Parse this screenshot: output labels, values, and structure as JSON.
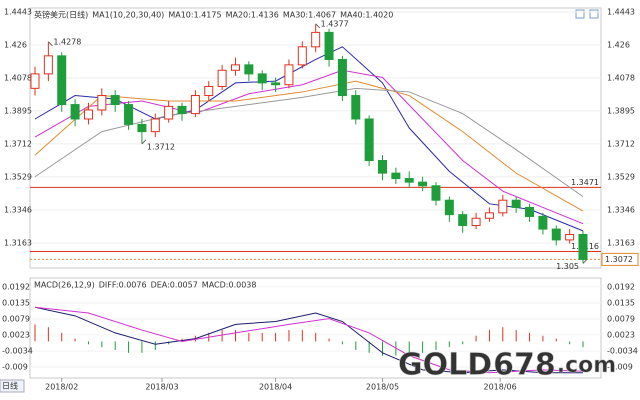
{
  "chart_data": [
    {
      "type": "candlestick",
      "title": "英镑美元(日线)",
      "indicator": "MA1(10,20,30,40)",
      "up_color": "#e0301e",
      "down_color": "#1e9e3a",
      "ylim": [
        1.3041,
        1.4454
      ],
      "yticks": [
        1.4443,
        1.426,
        1.4078,
        1.3895,
        1.3712,
        1.3529,
        1.3346,
        1.3163
      ],
      "xlim": [
        -2,
        42
      ],
      "xticks": [
        {
          "value": 2,
          "label": "2018/02"
        },
        {
          "value": 9.5,
          "label": "2018/03"
        },
        {
          "value": 18,
          "label": "2018/04"
        },
        {
          "value": 26,
          "label": "2018/05"
        },
        {
          "value": 34.8,
          "label": "2018/06"
        }
      ],
      "period_label": "日线",
      "candles": [
        {
          "o": 1.402,
          "h": 1.414,
          "l": 1.398,
          "c": 1.41
        },
        {
          "o": 1.41,
          "h": 1.4278,
          "l": 1.406,
          "c": 1.42
        },
        {
          "o": 1.42,
          "h": 1.422,
          "l": 1.389,
          "c": 1.393
        },
        {
          "o": 1.393,
          "h": 1.396,
          "l": 1.381,
          "c": 1.385
        },
        {
          "o": 1.385,
          "h": 1.394,
          "l": 1.382,
          "c": 1.39
        },
        {
          "o": 1.39,
          "h": 1.402,
          "l": 1.387,
          "c": 1.398
        },
        {
          "o": 1.398,
          "h": 1.401,
          "l": 1.389,
          "c": 1.393
        },
        {
          "o": 1.393,
          "h": 1.395,
          "l": 1.379,
          "c": 1.382
        },
        {
          "o": 1.382,
          "h": 1.385,
          "l": 1.3712,
          "c": 1.378
        },
        {
          "o": 1.378,
          "h": 1.388,
          "l": 1.375,
          "c": 1.385
        },
        {
          "o": 1.385,
          "h": 1.395,
          "l": 1.383,
          "c": 1.392
        },
        {
          "o": 1.392,
          "h": 1.394,
          "l": 1.384,
          "c": 1.388
        },
        {
          "o": 1.388,
          "h": 1.401,
          "l": 1.386,
          "c": 1.398
        },
        {
          "o": 1.398,
          "h": 1.406,
          "l": 1.395,
          "c": 1.403
        },
        {
          "o": 1.403,
          "h": 1.415,
          "l": 1.401,
          "c": 1.412
        },
        {
          "o": 1.412,
          "h": 1.419,
          "l": 1.409,
          "c": 1.415
        },
        {
          "o": 1.415,
          "h": 1.417,
          "l": 1.406,
          "c": 1.41
        },
        {
          "o": 1.41,
          "h": 1.412,
          "l": 1.401,
          "c": 1.405
        },
        {
          "o": 1.405,
          "h": 1.408,
          "l": 1.4,
          "c": 1.404
        },
        {
          "o": 1.404,
          "h": 1.418,
          "l": 1.402,
          "c": 1.415
        },
        {
          "o": 1.415,
          "h": 1.428,
          "l": 1.413,
          "c": 1.425
        },
        {
          "o": 1.425,
          "h": 1.4377,
          "l": 1.422,
          "c": 1.433
        },
        {
          "o": 1.433,
          "h": 1.435,
          "l": 1.414,
          "c": 1.418
        },
        {
          "o": 1.418,
          "h": 1.42,
          "l": 1.395,
          "c": 1.398
        },
        {
          "o": 1.398,
          "h": 1.401,
          "l": 1.382,
          "c": 1.385
        },
        {
          "o": 1.385,
          "h": 1.387,
          "l": 1.359,
          "c": 1.362
        },
        {
          "o": 1.362,
          "h": 1.365,
          "l": 1.351,
          "c": 1.355
        },
        {
          "o": 1.355,
          "h": 1.358,
          "l": 1.349,
          "c": 1.352
        },
        {
          "o": 1.352,
          "h": 1.356,
          "l": 1.347,
          "c": 1.35
        },
        {
          "o": 1.35,
          "h": 1.353,
          "l": 1.345,
          "c": 1.348
        },
        {
          "o": 1.348,
          "h": 1.35,
          "l": 1.337,
          "c": 1.34
        },
        {
          "o": 1.34,
          "h": 1.342,
          "l": 1.328,
          "c": 1.332
        },
        {
          "o": 1.332,
          "h": 1.334,
          "l": 1.322,
          "c": 1.326
        },
        {
          "o": 1.326,
          "h": 1.333,
          "l": 1.324,
          "c": 1.33
        },
        {
          "o": 1.33,
          "h": 1.336,
          "l": 1.328,
          "c": 1.333
        },
        {
          "o": 1.333,
          "h": 1.343,
          "l": 1.331,
          "c": 1.34
        },
        {
          "o": 1.34,
          "h": 1.342,
          "l": 1.333,
          "c": 1.336
        },
        {
          "o": 1.336,
          "h": 1.338,
          "l": 1.328,
          "c": 1.331
        },
        {
          "o": 1.331,
          "h": 1.333,
          "l": 1.321,
          "c": 1.324
        },
        {
          "o": 1.324,
          "h": 1.326,
          "l": 1.315,
          "c": 1.318
        },
        {
          "o": 1.318,
          "h": 1.324,
          "l": 1.316,
          "c": 1.321
        },
        {
          "o": 1.321,
          "h": 1.323,
          "l": 1.305,
          "c": 1.3072
        }
      ],
      "series": [
        {
          "name": "MA10:1.4175",
          "color": "#2a2aa8",
          "x": [
            0,
            3,
            6,
            9,
            12,
            15,
            18,
            21,
            23,
            26,
            28,
            31,
            34,
            37,
            41
          ],
          "values": [
            1.385,
            1.398,
            1.396,
            1.385,
            1.39,
            1.405,
            1.406,
            1.418,
            1.425,
            1.405,
            1.38,
            1.356,
            1.338,
            1.335,
            1.323
          ]
        },
        {
          "name": "MA20:1.4136",
          "color": "#d030d0",
          "x": [
            0,
            4,
            8,
            12,
            16,
            20,
            23,
            26,
            29,
            32,
            35,
            38,
            41
          ],
          "values": [
            1.375,
            1.392,
            1.395,
            1.388,
            1.399,
            1.404,
            1.412,
            1.408,
            1.385,
            1.362,
            1.345,
            1.336,
            1.327
          ]
        },
        {
          "name": "MA30:1.4067",
          "color": "#e08a30",
          "x": [
            0,
            5,
            10,
            15,
            20,
            24,
            28,
            32,
            36,
            41
          ],
          "values": [
            1.365,
            1.398,
            1.395,
            1.395,
            1.4,
            1.406,
            1.398,
            1.378,
            1.355,
            1.334
          ]
        },
        {
          "name": "MA40:1.4020",
          "color": "#999999",
          "x": [
            0,
            5,
            10,
            15,
            20,
            24,
            28,
            32,
            36,
            41
          ],
          "values": [
            1.353,
            1.378,
            1.387,
            1.392,
            1.397,
            1.402,
            1.4,
            1.388,
            1.368,
            1.342
          ]
        }
      ],
      "annotations": [
        {
          "value": 1.4278,
          "at": 1
        },
        {
          "value": 1.3712,
          "at": 8
        },
        {
          "value": 1.4377,
          "at": 21
        },
        {
          "value": 1.305,
          "at": 41
        }
      ],
      "hlines": [
        {
          "value": 1.3471,
          "color": "#e0301e"
        },
        {
          "value": 1.3116,
          "color": "#e0301e"
        }
      ],
      "last_price": {
        "value": 1.3072,
        "color": "#e08a30"
      }
    },
    {
      "type": "macd",
      "title": "MACD(26,12,9)",
      "xlim": [
        -2,
        42
      ],
      "ylim": [
        -0.0118,
        0.0216
      ],
      "yticks": [
        0.0192,
        0.0135,
        0.0079,
        0.0023,
        -0.0034,
        -0.009
      ],
      "up_color": "#e0301e",
      "down_color": "#1e9e3a",
      "histogram": {
        "name": "MACD:0.0038",
        "color": "#e08a30",
        "values": [
          0.006,
          0.005,
          0.003,
          0.001,
          -0.001,
          -0.002,
          -0.003,
          -0.004,
          -0.004,
          -0.003,
          -0.001,
          0.001,
          0.002,
          0.003,
          0.004,
          0.004,
          0.003,
          0.003,
          0.003,
          0.004,
          0.004,
          0.003,
          0.001,
          -0.001,
          -0.003,
          -0.004,
          -0.005,
          -0.005,
          -0.004,
          -0.004,
          -0.003,
          -0.002,
          -0.001,
          0.002,
          0.004,
          0.005,
          0.004,
          0.003,
          0.002,
          0.001,
          -0.001,
          -0.002
        ]
      },
      "series": [
        {
          "name": "DIFF:0.0076",
          "color": "#1a1a6a",
          "x": [
            0,
            3,
            6,
            9,
            12,
            15,
            18,
            21,
            23,
            26,
            29,
            32,
            35,
            38,
            41
          ],
          "values": [
            0.012,
            0.009,
            0.003,
            -0.001,
            0.001,
            0.006,
            0.007,
            0.01,
            0.007,
            -0.004,
            -0.01,
            -0.011,
            -0.01,
            -0.011,
            -0.011
          ]
        },
        {
          "name": "DEA:0.0057",
          "color": "#d030d0",
          "x": [
            0,
            4,
            8,
            11,
            15,
            19,
            22,
            25,
            28,
            31,
            34,
            38,
            41
          ],
          "values": [
            0.012,
            0.01,
            0.004,
            0.0,
            0.003,
            0.006,
            0.008,
            0.003,
            -0.005,
            -0.01,
            -0.011,
            -0.01,
            -0.0105
          ]
        }
      ]
    },
    {
      "type": "watermark",
      "parts": [
        {
          "text": "GOLD",
          "color": "#f0f0f0"
        },
        {
          "text": "678",
          "color": "#f08a1e"
        },
        {
          "text": ".com",
          "color": "#f0f0f0"
        }
      ]
    }
  ]
}
